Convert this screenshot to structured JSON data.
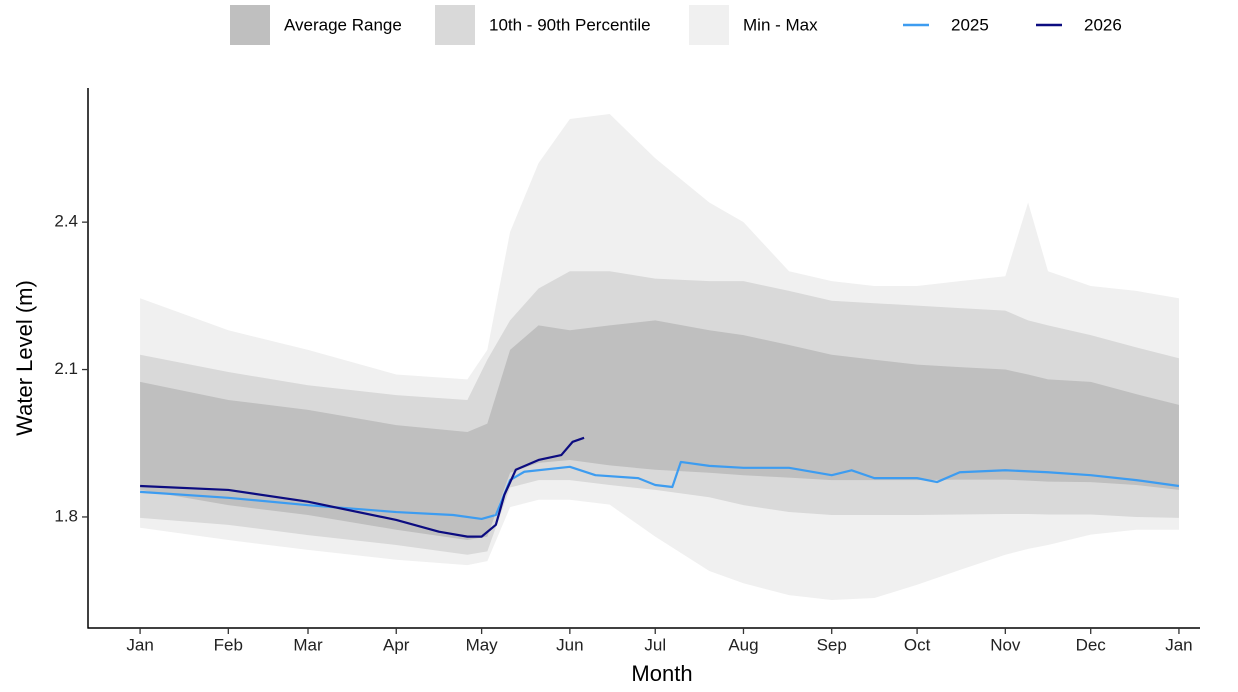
{
  "chart_data": {
    "type": "line",
    "x_label": "Month",
    "y_label": "Water Level (m)",
    "xlim": [
      -18.3,
      372.4
    ],
    "ylim": [
      1.574,
      2.673
    ],
    "xticks": [
      {
        "value": 0,
        "label": "Jan"
      },
      {
        "value": 31,
        "label": "Feb"
      },
      {
        "value": 59,
        "label": "Mar"
      },
      {
        "value": 90,
        "label": "Apr"
      },
      {
        "value": 120,
        "label": "May"
      },
      {
        "value": 151,
        "label": "Jun"
      },
      {
        "value": 181,
        "label": "Jul"
      },
      {
        "value": 212,
        "label": "Aug"
      },
      {
        "value": 243,
        "label": "Sep"
      },
      {
        "value": 273,
        "label": "Oct"
      },
      {
        "value": 304,
        "label": "Nov"
      },
      {
        "value": 334,
        "label": "Dec"
      },
      {
        "value": 365,
        "label": "Jan"
      }
    ],
    "yticks": [
      1.8,
      2.1,
      2.4
    ],
    "band_x": [
      0,
      31,
      59,
      90,
      115,
      122,
      130,
      140,
      151,
      165,
      181,
      200,
      212,
      228,
      243,
      258,
      273,
      288,
      304,
      312,
      319,
      334,
      350,
      365
    ],
    "bands": [
      {
        "name": "Min - Max",
        "color": "#f0f0f0",
        "low": [
          1.778,
          1.753,
          1.733,
          1.713,
          1.702,
          1.71,
          1.82,
          1.835,
          1.835,
          1.825,
          1.76,
          1.69,
          1.665,
          1.641,
          1.631,
          1.635,
          1.662,
          1.692,
          1.723,
          1.735,
          1.743,
          1.764,
          1.774,
          1.774
        ],
        "high": [
          2.245,
          2.18,
          2.14,
          2.09,
          2.08,
          2.14,
          2.38,
          2.52,
          2.61,
          2.62,
          2.53,
          2.44,
          2.4,
          2.3,
          2.28,
          2.27,
          2.27,
          2.28,
          2.29,
          2.44,
          2.3,
          2.27,
          2.26,
          2.245
        ]
      },
      {
        "name": "10th - 90th Percentile",
        "color": "#d9d9d9",
        "low": [
          1.798,
          1.784,
          1.763,
          1.743,
          1.723,
          1.73,
          1.86,
          1.875,
          1.875,
          1.865,
          1.855,
          1.84,
          1.824,
          1.81,
          1.804,
          1.804,
          1.804,
          1.805,
          1.806,
          1.806,
          1.805,
          1.805,
          1.8,
          1.798
        ],
        "high": [
          2.13,
          2.095,
          2.068,
          2.048,
          2.038,
          2.12,
          2.2,
          2.265,
          2.3,
          2.3,
          2.285,
          2.28,
          2.28,
          2.26,
          2.24,
          2.235,
          2.23,
          2.225,
          2.22,
          2.2,
          2.19,
          2.17,
          2.145,
          2.123
        ]
      },
      {
        "name": "Average Range",
        "color": "#bfbfbf",
        "low": [
          1.855,
          1.824,
          1.804,
          1.774,
          1.753,
          1.76,
          1.89,
          1.91,
          1.916,
          1.905,
          1.896,
          1.89,
          1.885,
          1.88,
          1.875,
          1.875,
          1.875,
          1.876,
          1.876,
          1.874,
          1.872,
          1.871,
          1.865,
          1.855
        ],
        "high": [
          2.075,
          2.038,
          2.018,
          1.987,
          1.973,
          1.99,
          2.14,
          2.19,
          2.18,
          2.19,
          2.2,
          2.18,
          2.17,
          2.15,
          2.13,
          2.12,
          2.11,
          2.105,
          2.1,
          2.09,
          2.08,
          2.075,
          2.05,
          2.028
        ]
      }
    ],
    "series": [
      {
        "name": "2025",
        "color": "#3d9cf0",
        "x": [
          0,
          31,
          59,
          90,
          110,
          120,
          125,
          130,
          135,
          151,
          160,
          175,
          181,
          187,
          190,
          200,
          212,
          228,
          243,
          250,
          258,
          273,
          280,
          288,
          304,
          319,
          334,
          350,
          365
        ],
        "values": [
          1.851,
          1.839,
          1.824,
          1.81,
          1.804,
          1.796,
          1.804,
          1.875,
          1.892,
          1.902,
          1.885,
          1.879,
          1.865,
          1.861,
          1.912,
          1.904,
          1.9,
          1.9,
          1.885,
          1.895,
          1.879,
          1.879,
          1.871,
          1.891,
          1.895,
          1.891,
          1.885,
          1.875,
          1.863
        ]
      },
      {
        "name": "2026",
        "color": "#0c0c80",
        "x": [
          0,
          31,
          59,
          90,
          105,
          115,
          120,
          125,
          128,
          132,
          140,
          148,
          152,
          156
        ],
        "values": [
          1.863,
          1.855,
          1.831,
          1.794,
          1.77,
          1.76,
          1.76,
          1.784,
          1.845,
          1.896,
          1.916,
          1.926,
          1.953,
          1.961
        ]
      }
    ]
  }
}
